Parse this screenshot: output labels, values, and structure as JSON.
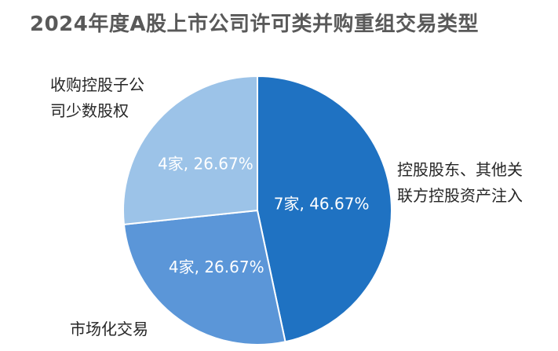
{
  "chart_data": {
    "type": "pie",
    "title": "2024年度A股上市公司许可类并购重组交易类型",
    "slices": [
      {
        "name": "控股股东、其他关联方控股资产注入",
        "name_display": "控股股东、其他关\n联方控股资产注入",
        "value": 7,
        "percent": 46.67,
        "data_label": "7家, 46.67%",
        "color": "#1F72C2"
      },
      {
        "name": "市场化交易",
        "name_display": "市场化交易",
        "value": 4,
        "percent": 26.67,
        "data_label": "4家, 26.67%",
        "color": "#5B96D8"
      },
      {
        "name": "收购控股子公司少数股权",
        "name_display": "收购控股子公\n司少数股权",
        "value": 4,
        "percent": 26.67,
        "data_label": "4家, 26.67%",
        "color": "#9CC3E8"
      }
    ],
    "start_angle": "12 o'clock",
    "direction": "clockwise"
  }
}
